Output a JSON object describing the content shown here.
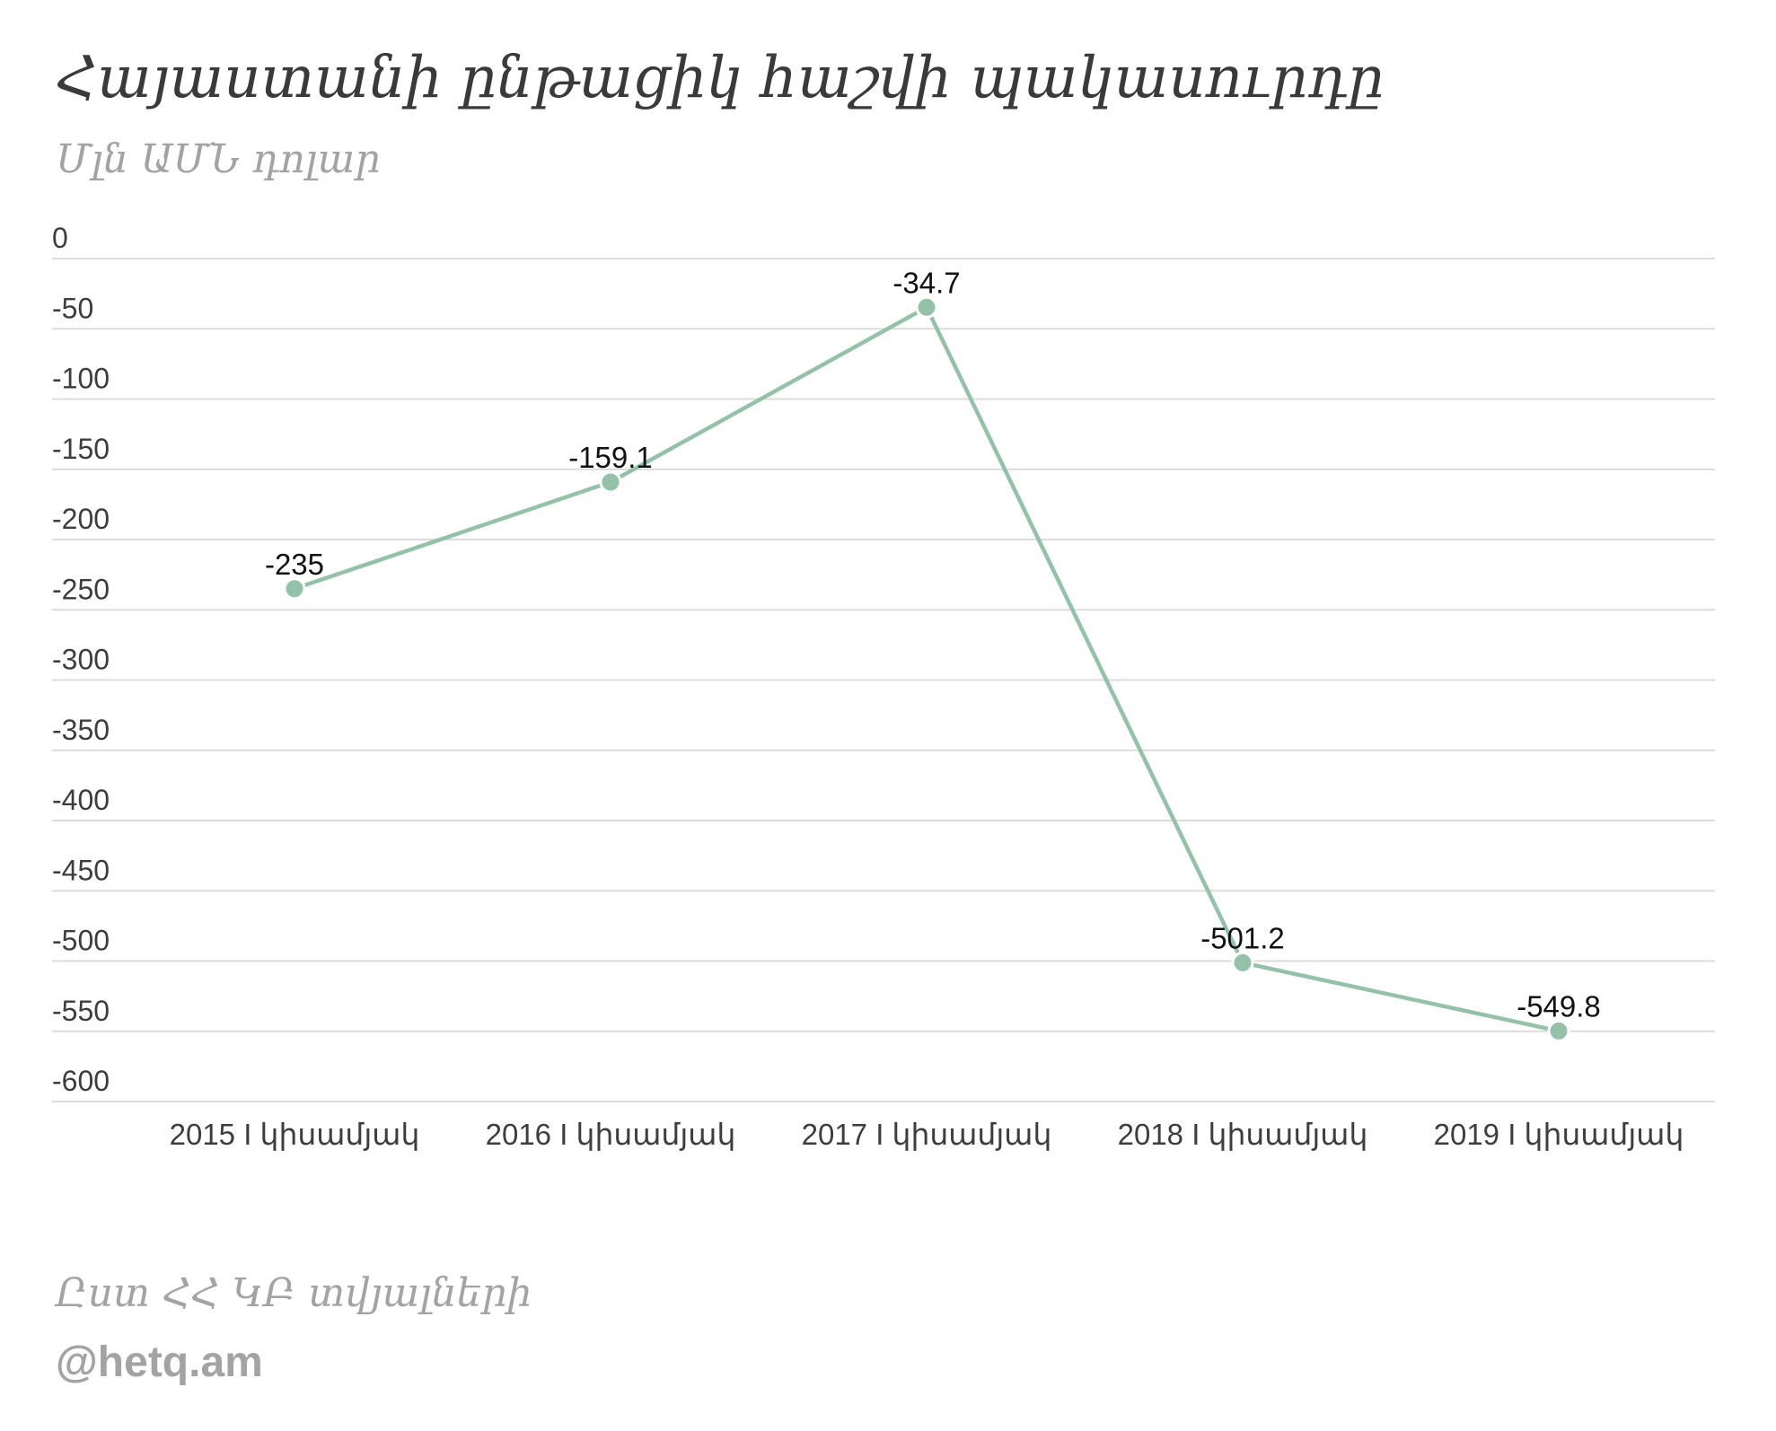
{
  "title": "Հայաստանի ընթացիկ հաշվի պակասուրդը",
  "subtitle": "Մլն ԱՄՆ դոլար",
  "source": "Ըստ ՀՀ ԿԲ տվյալների",
  "credit": "@hetq.am",
  "colors": {
    "line": "#93c2a8",
    "grid": "#dcdcdc",
    "text": "#3d3d3d",
    "muted": "#a3a3a3"
  },
  "chart_data": {
    "type": "line",
    "title": "Հայաստանի ընթացիկ հաշվի պակասուրդը",
    "ylabel": "Մլն ԱՄՆ դոլար",
    "xlabel": "",
    "categories": [
      "2015 I կիսամյակ",
      "2016 I կիսամյակ",
      "2017 I կիսամյակ",
      "2018 I կիսամյակ",
      "2019 I կիսամյակ"
    ],
    "series": [
      {
        "values": [
          -235,
          -159.1,
          -34.7,
          -501.2,
          -549.8
        ],
        "data_labels": [
          "-235",
          "-159.1",
          "-34.7",
          "-501.2",
          "-549.8"
        ]
      }
    ],
    "ylim": [
      -600,
      0
    ],
    "yticks": [
      0,
      -50,
      -100,
      -150,
      -200,
      -250,
      -300,
      -350,
      -400,
      -450,
      -500,
      -550,
      -600
    ],
    "ytick_labels": [
      "0",
      "-50",
      "-100",
      "-150",
      "-200",
      "-250",
      "-300",
      "-350",
      "-400",
      "-450",
      "-500",
      "-550",
      "-600"
    ],
    "grid": true,
    "legend": "none"
  }
}
